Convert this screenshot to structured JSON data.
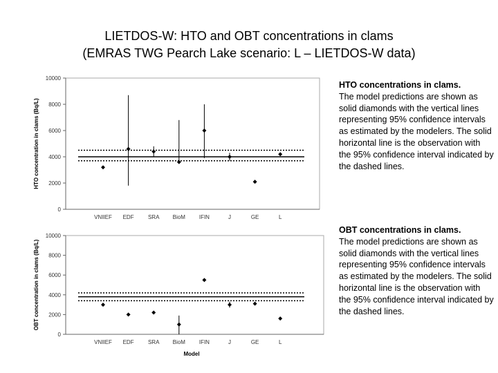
{
  "title": [
    "LIETDOS-W: HTO and OBT concentrations in clams",
    "(EMRAS TWG Pearch Lake scenario:  L – LIETDOS-W data)"
  ],
  "chart_data": [
    {
      "type": "scatter",
      "ylabel": "HTO concentration in clams (Bq/L)",
      "categories": [
        "VNIIEF",
        "EDF",
        "SRA",
        "BioM",
        "IFIN",
        "J",
        "GE",
        "L"
      ],
      "values": [
        3200,
        4600,
        4400,
        3600,
        6000,
        4000,
        2100,
        4200
      ],
      "lower": [
        null,
        1800,
        4000,
        null,
        3900,
        3700,
        null,
        null
      ],
      "upper": [
        null,
        8700,
        4800,
        6800,
        8000,
        4300,
        null,
        null
      ],
      "observation": 4000,
      "observation_lower": 3700,
      "observation_upper": 4500,
      "ylim": [
        0,
        10000
      ],
      "yticks": [
        0,
        2000,
        4000,
        6000,
        8000,
        10000
      ],
      "grid": false,
      "color": "#000000",
      "annotation_title": "HTO concentrations in clams.",
      "annotation": "The model predictions are shown as solid diamonds with the vertical lines representing 95% confidence intervals as estimated by the modelers. The solid horizontal line is the observation with the 95% confidence interval indicated by the dashed lines."
    },
    {
      "type": "scatter",
      "ylabel": "OBT concentration in clams (Bq/L)",
      "xlabel": "Model",
      "categories": [
        "VNIIEF",
        "EDF",
        "SRA",
        "BioM",
        "IFIN",
        "J",
        "GE",
        "L"
      ],
      "values": [
        3000,
        2000,
        2200,
        1000,
        5500,
        3000,
        3100,
        1600
      ],
      "lower": [
        null,
        null,
        null,
        0,
        null,
        2700,
        null,
        null
      ],
      "upper": [
        null,
        null,
        null,
        1900,
        null,
        3300,
        null,
        null
      ],
      "observation": 3800,
      "observation_lower": 3400,
      "observation_upper": 4200,
      "ylim": [
        0,
        10000
      ],
      "yticks": [
        0,
        2000,
        4000,
        6000,
        8000,
        10000
      ],
      "grid": false,
      "color": "#000000",
      "annotation_title": "OBT concentrations in clams.",
      "annotation": "The model predictions are shown as solid diamonds with the vertical lines representing 95% confidence intervals as estimated by the modelers. The solid horizontal line is the observation with the 95% confidence interval indicated by the dashed lines."
    }
  ]
}
